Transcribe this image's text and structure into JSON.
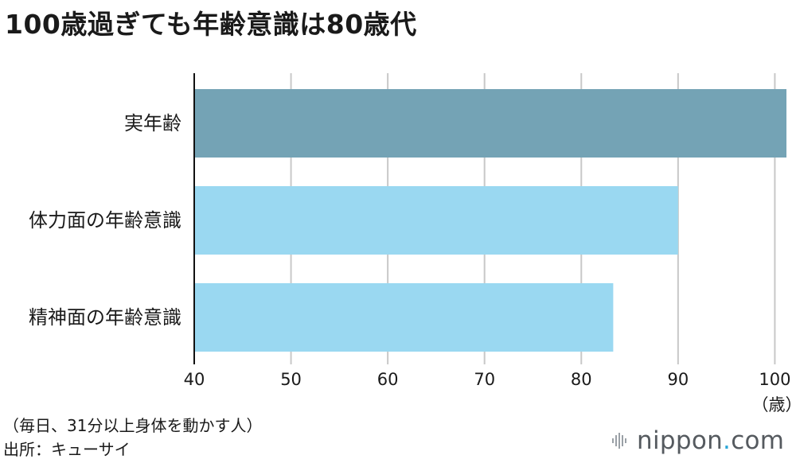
{
  "title": "100歳過ぎても年齢意識は80歳代",
  "note": "（毎日、31分以上身体を動かす人）",
  "source": "出所：キューサイ",
  "logo": {
    "name": "nippon",
    "suffix": ".com"
  },
  "colors": {
    "actual_age_bar": "#74a3b5",
    "awareness_bar": "#9ad8f1",
    "grid": "#c8c8c8",
    "axis": "#111111",
    "logo_dot": "#2aa6d8"
  },
  "chart_data": {
    "type": "bar",
    "orientation": "horizontal",
    "categories": [
      "実年齢",
      "体力面の年齢意識",
      "精神面の年齢意識"
    ],
    "values": [
      101.2,
      90.0,
      83.3
    ],
    "xlim": [
      40,
      101.2
    ],
    "xticks": [
      "40",
      "50",
      "60",
      "70",
      "80",
      "90",
      "100"
    ],
    "xunit": "（歳）",
    "grid": "vertical"
  }
}
